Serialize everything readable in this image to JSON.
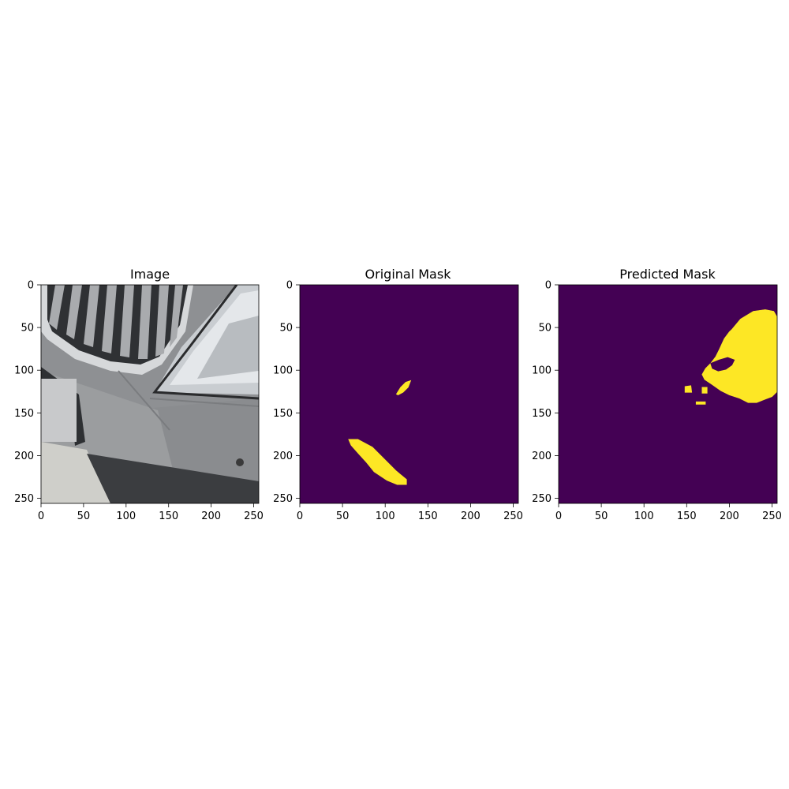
{
  "colors": {
    "background": "#440154",
    "mask_fill": "#fde725",
    "edge_fill": "#35b779",
    "axis": "#000000",
    "car_silver": "#9a9c9e",
    "car_dark": "#3a3c3f",
    "headlight": "#dfe3e6",
    "ground": "#c9c9c4"
  },
  "chart_data": [
    {
      "type": "image",
      "title": "Image",
      "xlim": [
        0,
        256
      ],
      "ylim": [
        256,
        0
      ],
      "xticks": [
        0,
        50,
        100,
        150,
        200,
        250
      ],
      "yticks": [
        0,
        50,
        100,
        150,
        200,
        250
      ],
      "content": "photo of silver car front bumper with grille and headlight"
    },
    {
      "type": "heatmap",
      "title": "Original Mask",
      "xlim": [
        0,
        256
      ],
      "ylim": [
        256,
        0
      ],
      "xticks": [
        0,
        50,
        100,
        150,
        200,
        250
      ],
      "yticks": [
        0,
        50,
        100,
        150,
        200,
        250
      ],
      "regions": [
        {
          "value": 1,
          "polygon": [
            [
              113,
              128
            ],
            [
              118,
              120
            ],
            [
              124,
              114
            ],
            [
              130,
              112
            ],
            [
              127,
              120
            ],
            [
              121,
              126
            ],
            [
              115,
              129
            ]
          ]
        },
        {
          "value": 1,
          "polygon": [
            [
              57,
              181
            ],
            [
              68,
              181
            ],
            [
              85,
              190
            ],
            [
              100,
              205
            ],
            [
              113,
              218
            ],
            [
              125,
              228
            ],
            [
              125,
              234
            ],
            [
              114,
              234
            ],
            [
              102,
              229
            ],
            [
              87,
              219
            ],
            [
              78,
              208
            ],
            [
              68,
              197
            ],
            [
              60,
              188
            ]
          ]
        }
      ]
    },
    {
      "type": "heatmap",
      "title": "Predicted Mask",
      "xlim": [
        0,
        256
      ],
      "ylim": [
        256,
        0
      ],
      "xticks": [
        0,
        50,
        100,
        150,
        200,
        250
      ],
      "yticks": [
        0,
        50,
        100,
        150,
        200,
        250
      ],
      "regions": [
        {
          "value": 1,
          "polygon": [
            [
              203,
              52
            ],
            [
              213,
              40
            ],
            [
              228,
              31
            ],
            [
              242,
              29
            ],
            [
              252,
              31
            ],
            [
              256,
              38
            ],
            [
              256,
              125
            ],
            [
              250,
              131
            ],
            [
              242,
              134
            ],
            [
              232,
              138
            ],
            [
              222,
              138
            ],
            [
              212,
              133
            ],
            [
              200,
              129
            ],
            [
              190,
              124
            ],
            [
              180,
              117
            ],
            [
              171,
              111
            ],
            [
              168,
              105
            ],
            [
              172,
              98
            ],
            [
              178,
              92
            ],
            [
              184,
              84
            ],
            [
              188,
              76
            ],
            [
              194,
              63
            ],
            [
              200,
              55
            ]
          ]
        },
        {
          "value": 0,
          "polygon": [
            [
              178,
              92
            ],
            [
              188,
              88
            ],
            [
              198,
              85
            ],
            [
              206,
              88
            ],
            [
              203,
              94
            ],
            [
              196,
              99
            ],
            [
              187,
              101
            ],
            [
              180,
              98
            ]
          ]
        },
        {
          "value": 1,
          "polygon": [
            [
              148,
              119
            ],
            [
              155,
              118
            ],
            [
              156,
              126
            ],
            [
              148,
              126
            ]
          ]
        },
        {
          "value": 1,
          "polygon": [
            [
              161,
              137
            ],
            [
              172,
              137
            ],
            [
              172,
              140
            ],
            [
              161,
              140
            ]
          ]
        },
        {
          "value": 1,
          "polygon": [
            [
              168,
              120
            ],
            [
              174,
              120
            ],
            [
              174,
              127
            ],
            [
              168,
              127
            ]
          ]
        }
      ]
    }
  ]
}
